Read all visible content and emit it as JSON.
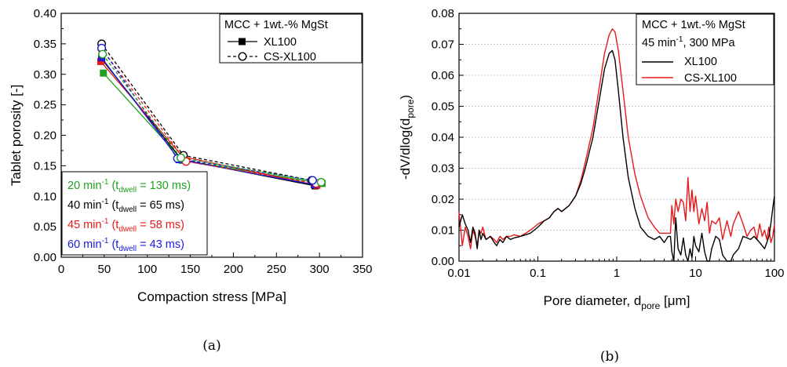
{
  "chart_data": [
    {
      "type": "line",
      "xlabel": "Compaction stress [MPa]",
      "ylabel": "Tablet porosity [-]",
      "xlim": [
        0,
        350
      ],
      "ylim": [
        0.0,
        0.4
      ],
      "x_ticks": [
        "0",
        "50",
        "100",
        "150",
        "200",
        "250",
        "300",
        "350"
      ],
      "y_ticks": [
        "0.00",
        "0.05",
        "0.10",
        "0.15",
        "0.20",
        "0.25",
        "0.30",
        "0.35",
        "0.40"
      ],
      "panel_label": "(a)",
      "legend_title": "MCC + 1wt.-% MgSt",
      "legend_entries": [
        "XL100",
        "CS-XL100"
      ],
      "speed_legend": [
        {
          "main": "20 min",
          "sup": "-1",
          "pre": " (t",
          "sub": "dwell",
          "post": " = 130 ms)",
          "color": "#1fa01f"
        },
        {
          "main": "40 min",
          "sup": "-1",
          "pre": " (t",
          "sub": "dwell",
          "post": " = 65 ms)",
          "color": "#000000"
        },
        {
          "main": "45 min",
          "sup": "-1",
          "pre": " (t",
          "sub": "dwell",
          "post": " = 58 ms)",
          "color": "#e8191a"
        },
        {
          "main": "60 min",
          "sup": "-1",
          "pre": " (t",
          "sub": "dwell",
          "post": " = 43 ms)",
          "color": "#1a1adb"
        }
      ],
      "series": [
        {
          "name": "XL100",
          "speed": "20 min-1",
          "color": "#1fa01f",
          "style": "solid",
          "marker": "square-filled",
          "x": [
            49,
            141,
            303
          ],
          "y": [
            0.302,
            0.159,
            0.121
          ]
        },
        {
          "name": "XL100",
          "speed": "40 min-1",
          "color": "#000000",
          "style": "solid",
          "marker": "square-filled",
          "x": [
            47,
            140,
            295
          ],
          "y": [
            0.325,
            0.16,
            0.117
          ]
        },
        {
          "name": "XL100",
          "speed": "45 min-1",
          "color": "#e8191a",
          "style": "solid",
          "marker": "square-filled",
          "x": [
            46,
            141,
            297
          ],
          "y": [
            0.321,
            0.165,
            0.118
          ]
        },
        {
          "name": "XL100",
          "speed": "60 min-1",
          "color": "#1a1adb",
          "style": "solid",
          "marker": "square-filled",
          "x": [
            47,
            137,
            294
          ],
          "y": [
            0.327,
            0.16,
            0.119
          ]
        },
        {
          "name": "CS-XL100",
          "speed": "40 min-1",
          "color": "#000000",
          "style": "dashed",
          "marker": "circle-open",
          "x": [
            47,
            142,
            291
          ],
          "y": [
            0.35,
            0.167,
            0.126
          ]
        },
        {
          "name": "CS-XL100",
          "speed": "45 min-1",
          "color": "#e8191a",
          "style": "dashed",
          "marker": "circle-open",
          "x": [
            47,
            145,
            296
          ],
          "y": [
            0.342,
            0.157,
            0.121
          ]
        },
        {
          "name": "CS-XL100",
          "speed": "60 min-1",
          "color": "#1a1adb",
          "style": "dashed",
          "marker": "circle-open",
          "x": [
            47,
            135,
            292
          ],
          "y": [
            0.343,
            0.162,
            0.126
          ]
        },
        {
          "name": "CS-XL100",
          "speed": "20 min-1",
          "color": "#1fa01f",
          "style": "dashed",
          "marker": "circle-open",
          "x": [
            48,
            139,
            302
          ],
          "y": [
            0.333,
            0.163,
            0.123
          ]
        }
      ]
    },
    {
      "type": "line",
      "x_scale": "log",
      "xlabel_main": "Pore diameter, d",
      "xlabel_sub": "pore",
      "xlabel_tail": " [μm]",
      "ylabel_main": "-dV/dlog(d",
      "ylabel_sub": "pore",
      "ylabel_tail": ")",
      "xlim": [
        0.01,
        100
      ],
      "ylim": [
        0.0,
        0.08
      ],
      "x_ticks": [
        "0.01",
        "0.1",
        "1",
        "10",
        "100"
      ],
      "y_ticks": [
        "0.00",
        "0.01",
        "0.02",
        "0.03",
        "0.04",
        "0.05",
        "0.06",
        "0.07",
        "0.08"
      ],
      "panel_label": "(b)",
      "legend_title": "MCC + 1wt.-% MgSt",
      "legend_line2_main": "45 min",
      "legend_line2_sup": "-1",
      "legend_line2_tail": ", 300 MPa",
      "series": [
        {
          "name": "XL100",
          "color": "#000000",
          "x": [
            0.01,
            0.011,
            0.012,
            0.013,
            0.014,
            0.015,
            0.016,
            0.017,
            0.018,
            0.019,
            0.02,
            0.022,
            0.025,
            0.028,
            0.03,
            0.033,
            0.036,
            0.04,
            0.045,
            0.05,
            0.06,
            0.07,
            0.08,
            0.09,
            0.1,
            0.12,
            0.14,
            0.16,
            0.18,
            0.2,
            0.25,
            0.3,
            0.35,
            0.4,
            0.5,
            0.6,
            0.7,
            0.8,
            0.88,
            0.95,
            1.05,
            1.2,
            1.4,
            1.7,
            2.0,
            2.5,
            3.0,
            3.5,
            4.0,
            4.5,
            4.8,
            5.0,
            5.3,
            5.6,
            6.0,
            6.5,
            7.0,
            7.5,
            8.0,
            8.5,
            9.0,
            9.5,
            10,
            11,
            12,
            13,
            14,
            15,
            16,
            18,
            20,
            22,
            25,
            28,
            30,
            35,
            40,
            45,
            50,
            55,
            60,
            65,
            70,
            75,
            80,
            85,
            90,
            95,
            100
          ],
          "y": [
            0.011,
            0.015,
            0.012,
            0.01,
            0.006,
            0.011,
            0.009,
            0.004,
            0.01,
            0.007,
            0.009,
            0.007,
            0.008,
            0.006,
            0.005,
            0.007,
            0.006,
            0.008,
            0.007,
            0.0075,
            0.008,
            0.0085,
            0.009,
            0.01,
            0.011,
            0.013,
            0.014,
            0.016,
            0.017,
            0.016,
            0.018,
            0.021,
            0.025,
            0.03,
            0.04,
            0.052,
            0.062,
            0.067,
            0.068,
            0.065,
            0.055,
            0.04,
            0.027,
            0.017,
            0.011,
            0.008,
            0.007,
            0.008,
            0.006,
            0.008,
            0.008,
            0.003,
            0.0,
            0.014,
            0.004,
            0.002,
            0.0075,
            0.002,
            0.0,
            0.004,
            0.001,
            0.008,
            0.005,
            0.003,
            0.009,
            0.003,
            0.0,
            0.0,
            0.004,
            0.008,
            0.007,
            0.002,
            0.0,
            0.0,
            0.002,
            0.004,
            0.008,
            0.0075,
            0.007,
            0.008,
            0.007,
            0.006,
            0.005,
            0.004,
            0.006,
            0.008,
            0.012,
            0.017,
            0.021
          ]
        },
        {
          "name": "CS-XL100",
          "color": "#e8191a",
          "x": [
            0.01,
            0.011,
            0.012,
            0.013,
            0.014,
            0.015,
            0.016,
            0.017,
            0.018,
            0.019,
            0.02,
            0.022,
            0.025,
            0.028,
            0.03,
            0.033,
            0.036,
            0.04,
            0.045,
            0.05,
            0.06,
            0.07,
            0.08,
            0.09,
            0.1,
            0.12,
            0.14,
            0.16,
            0.18,
            0.2,
            0.25,
            0.3,
            0.35,
            0.4,
            0.5,
            0.6,
            0.7,
            0.8,
            0.88,
            0.95,
            1.05,
            1.2,
            1.4,
            1.7,
            2.0,
            2.5,
            3.0,
            3.5,
            4.0,
            4.5,
            4.8,
            5.0,
            5.3,
            5.6,
            6.0,
            6.5,
            7.0,
            7.5,
            8.0,
            8.5,
            9.0,
            9.5,
            10,
            11,
            12,
            13,
            14,
            15,
            16,
            18,
            20,
            22,
            25,
            28,
            30,
            35,
            40,
            45,
            50,
            55,
            60,
            65,
            70,
            75,
            80,
            85,
            90,
            95,
            100
          ],
          "y": [
            0.016,
            0.005,
            0.011,
            0.008,
            0.004,
            0.01,
            0.008,
            0.005,
            0.01,
            0.009,
            0.011,
            0.007,
            0.008,
            0.007,
            0.006,
            0.008,
            0.007,
            0.008,
            0.008,
            0.0085,
            0.008,
            0.009,
            0.01,
            0.011,
            0.012,
            0.013,
            0.014,
            0.016,
            0.017,
            0.016,
            0.018,
            0.021,
            0.026,
            0.032,
            0.043,
            0.056,
            0.067,
            0.073,
            0.075,
            0.074,
            0.068,
            0.055,
            0.04,
            0.028,
            0.021,
            0.014,
            0.011,
            0.009,
            0.009,
            0.009,
            0.009,
            0.018,
            0.012,
            0.02,
            0.016,
            0.02,
            0.019,
            0.013,
            0.027,
            0.016,
            0.023,
            0.016,
            0.021,
            0.012,
            0.017,
            0.013,
            0.019,
            0.009,
            0.013,
            0.012,
            0.014,
            0.007,
            0.013,
            0.008,
            0.012,
            0.016,
            0.012,
            0.008,
            0.01,
            0.011,
            0.007,
            0.012,
            0.008,
            0.01,
            0.007,
            0.011,
            0.006,
            0.008,
            0.012
          ]
        }
      ]
    }
  ]
}
